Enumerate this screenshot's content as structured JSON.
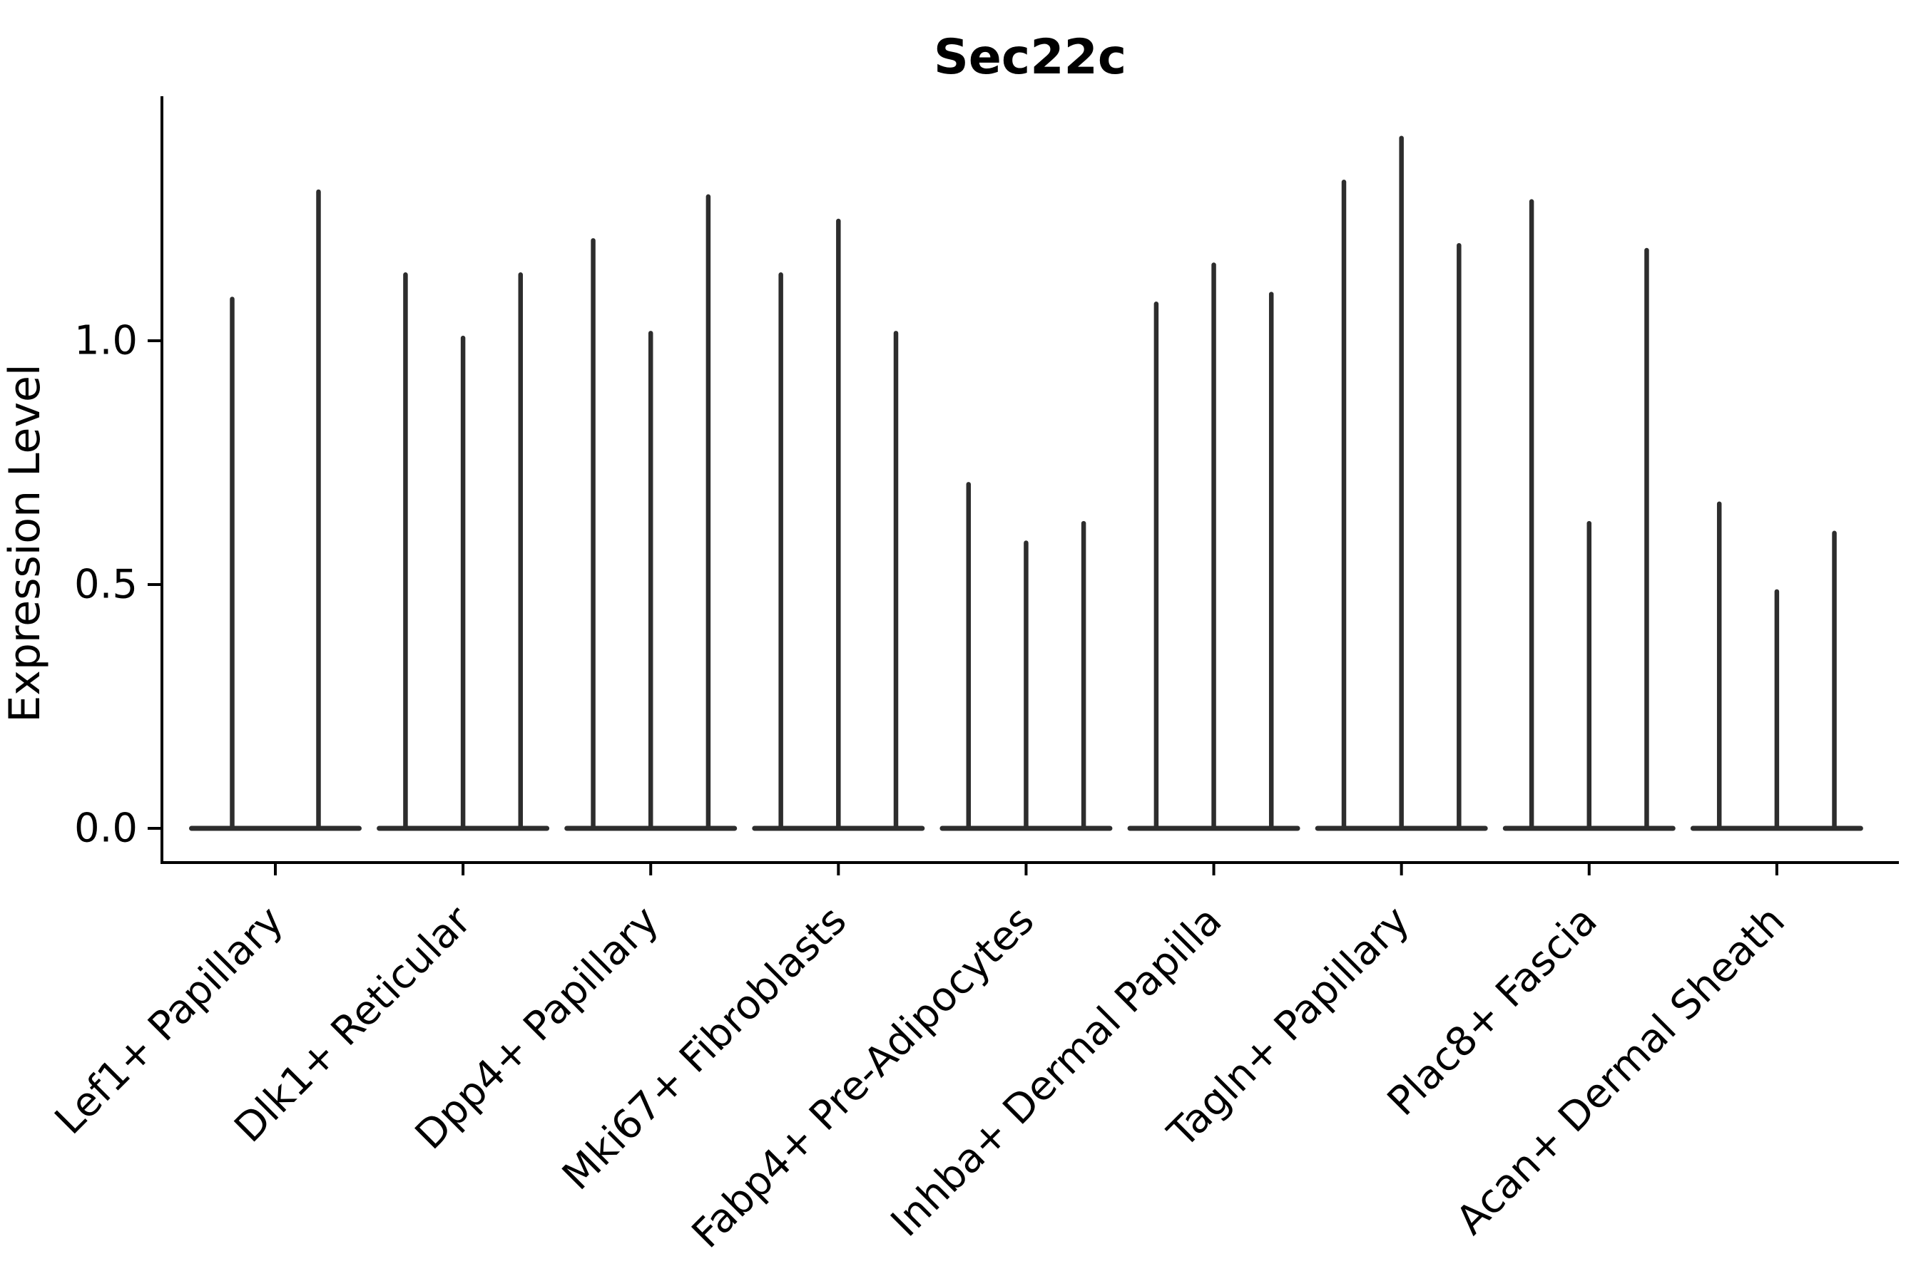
{
  "chart_data": {
    "type": "violin",
    "title": "Sec22c",
    "ylabel": "Expression Level",
    "xlabel": "",
    "grid": false,
    "legend": false,
    "background": "#ffffff",
    "axis_color": "#000000",
    "violin_color": "#2d2d2d",
    "ylim": [
      -0.07,
      1.5
    ],
    "yticks": [
      {
        "label": "0.0",
        "value": 0.0
      },
      {
        "label": "0.5",
        "value": 0.5
      },
      {
        "label": "1.0",
        "value": 1.0
      }
    ],
    "categories": [
      "Lef1+ Papillary",
      "Dlk1+ Reticular",
      "Dpp4+ Papillary",
      "Mki67+ Fibroblasts",
      "Fabp4+ Pre-Adipocytes",
      "Inhba+ Dermal Papilla",
      "Tagln+ Papillary",
      "Plac8+ Fascia",
      "Acan+ Dermal Sheath"
    ],
    "series": [
      {
        "category": "Lef1+ Papillary",
        "violin_max_values": [
          1.09,
          1.31
        ]
      },
      {
        "category": "Dlk1+ Reticular",
        "violin_max_values": [
          1.14,
          1.01,
          1.14
        ]
      },
      {
        "category": "Dpp4+ Papillary",
        "violin_max_values": [
          1.21,
          1.02,
          1.3
        ]
      },
      {
        "category": "Mki67+ Fibroblasts",
        "violin_max_values": [
          1.14,
          1.25,
          1.02
        ]
      },
      {
        "category": "Fabp4+ Pre-Adipocytes",
        "violin_max_values": [
          0.71,
          0.59,
          0.63
        ]
      },
      {
        "category": "Inhba+ Dermal Papilla",
        "violin_max_values": [
          1.08,
          1.16,
          1.1
        ]
      },
      {
        "category": "Tagln+ Papillary",
        "violin_max_values": [
          1.33,
          1.42,
          1.2
        ]
      },
      {
        "category": "Plac8+ Fascia",
        "violin_max_values": [
          1.29,
          0.63,
          1.19
        ]
      },
      {
        "category": "Acan+ Dermal Sheath",
        "violin_max_values": [
          0.67,
          0.49,
          0.61
        ]
      }
    ],
    "violins_all_reach_zero_baseline": true
  }
}
